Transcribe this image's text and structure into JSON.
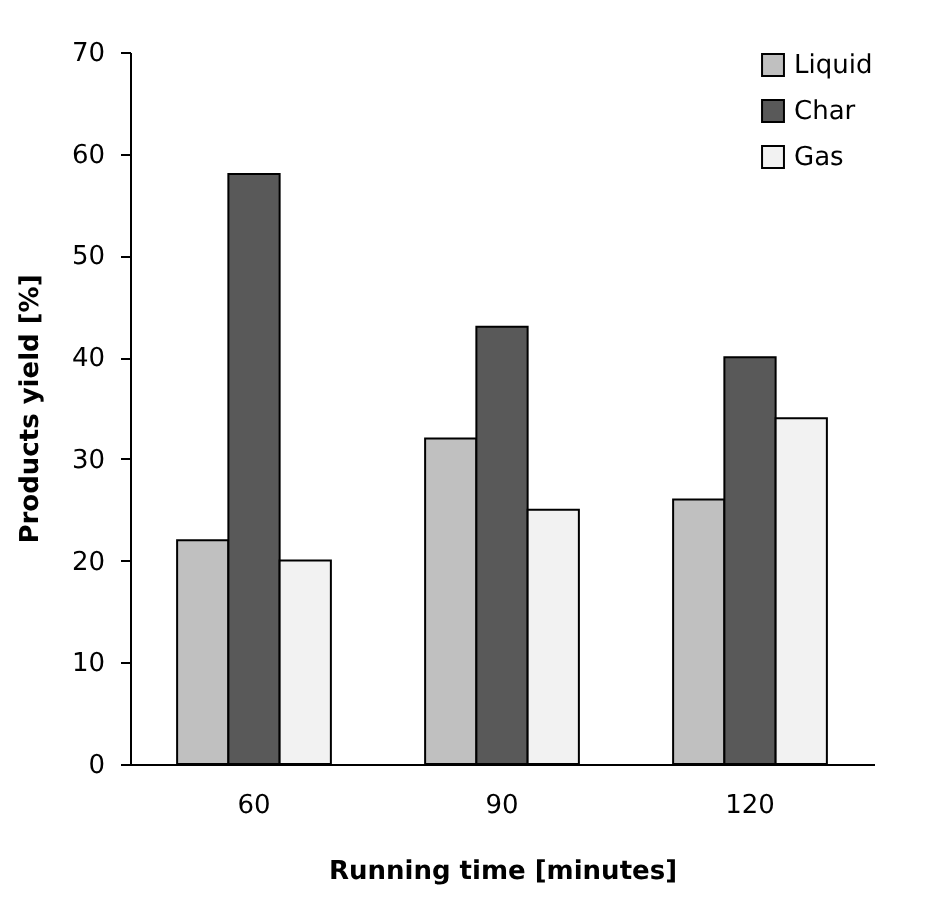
{
  "chart_data": {
    "type": "bar",
    "xlabel": "Running time [minutes]",
    "ylabel": "Products yield [%]",
    "categories": [
      "60",
      "90",
      "120"
    ],
    "series": [
      {
        "name": "Liquid",
        "color": "#c0c0c0",
        "values": [
          22,
          32,
          26
        ]
      },
      {
        "name": "Char",
        "color": "#595959",
        "values": [
          58,
          43,
          40
        ]
      },
      {
        "name": "Gas",
        "color": "#f2f2f2",
        "values": [
          20,
          25,
          34
        ]
      }
    ],
    "ylim": [
      0,
      70
    ],
    "yticks": [
      0,
      10,
      20,
      30,
      40,
      50,
      60,
      70
    ],
    "grid": false,
    "legend": "top right"
  }
}
